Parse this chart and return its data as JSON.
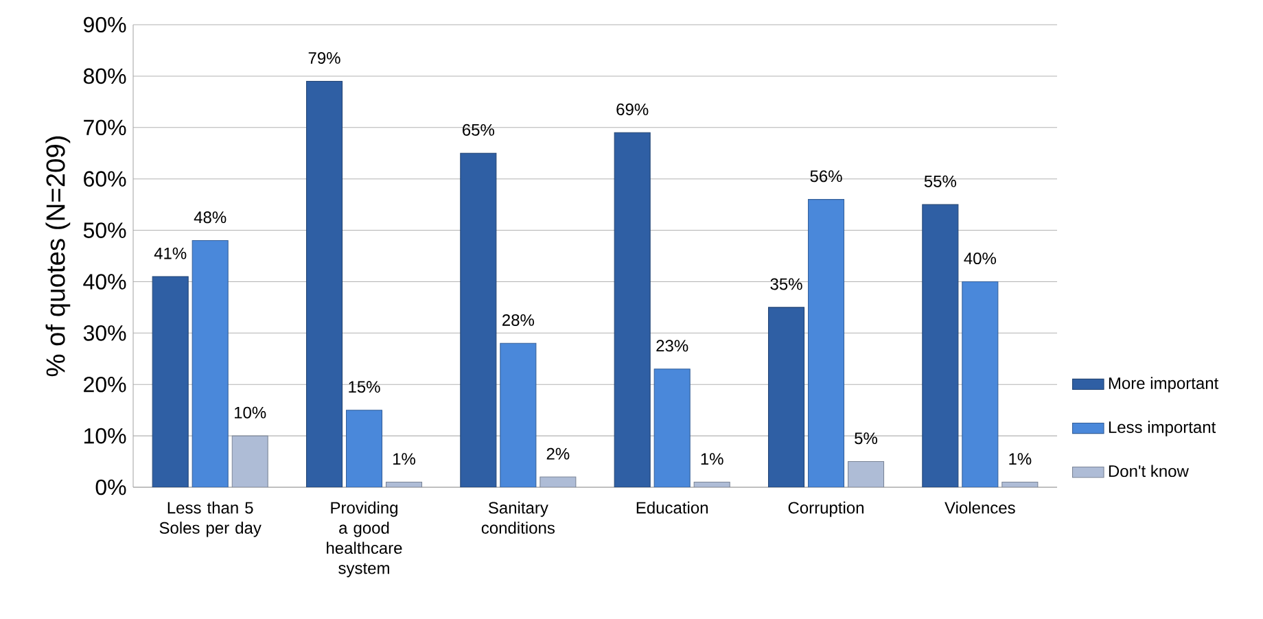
{
  "chart_data": {
    "type": "bar",
    "ylabel": "% of quotes (N=209)",
    "categories": [
      "Less than 5 Soles per day",
      "Providing a good healthcare system",
      "Sanitary conditions",
      "Education",
      "Corruption",
      "Violences"
    ],
    "series": [
      {
        "name": "More important",
        "color": "#2f5fa4",
        "values": [
          41,
          79,
          65,
          69,
          35,
          55
        ],
        "value_labels": [
          "41%",
          "79%",
          "65%",
          "69%",
          "35%",
          "55%"
        ]
      },
      {
        "name": "Less important",
        "color": "#4a88da",
        "values": [
          48,
          15,
          28,
          23,
          56,
          40
        ],
        "value_labels": [
          "48%",
          "15%",
          "28%",
          "23%",
          "56%",
          "40%"
        ]
      },
      {
        "name": "Don't know",
        "color": "#aebcd6",
        "values": [
          10,
          1,
          2,
          1,
          5,
          1
        ],
        "value_labels": [
          "10%",
          "1%",
          "2%",
          "1%",
          "5%",
          "1%"
        ]
      }
    ],
    "ylim": [
      0,
      90
    ],
    "yticks": [
      {
        "value": 0,
        "label": "0%"
      },
      {
        "value": 10,
        "label": "10%"
      },
      {
        "value": 20,
        "label": "20%"
      },
      {
        "value": 30,
        "label": "30%"
      },
      {
        "value": 40,
        "label": "40%"
      },
      {
        "value": 50,
        "label": "50%"
      },
      {
        "value": 60,
        "label": "60%"
      },
      {
        "value": 70,
        "label": "70%"
      },
      {
        "value": 80,
        "label": "80%"
      },
      {
        "value": 90,
        "label": "90%"
      }
    ],
    "grid": "y",
    "legend": "bottom right"
  }
}
